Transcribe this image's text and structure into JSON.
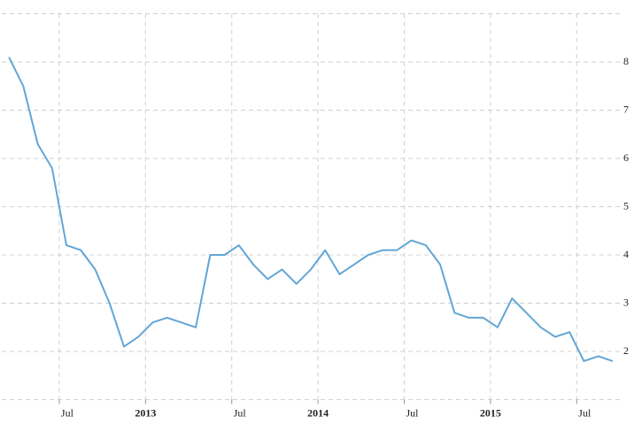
{
  "chart_data": {
    "type": "line",
    "x": [
      "2012-03",
      "2012-04",
      "2012-05",
      "2012-06",
      "2012-07",
      "2012-08",
      "2012-09",
      "2012-10",
      "2012-11",
      "2012-12",
      "2013-01",
      "2013-02",
      "2013-03",
      "2013-04",
      "2013-05",
      "2013-06",
      "2013-07",
      "2013-08",
      "2013-09",
      "2013-10",
      "2013-11",
      "2013-12",
      "2014-01",
      "2014-02",
      "2014-03",
      "2014-04",
      "2014-05",
      "2014-06",
      "2014-07",
      "2014-08",
      "2014-09",
      "2014-10",
      "2014-11",
      "2014-12",
      "2015-01",
      "2015-02",
      "2015-03",
      "2015-04",
      "2015-05",
      "2015-06",
      "2015-07",
      "2015-08",
      "2015-09"
    ],
    "series": [
      {
        "color": "#62a6d6",
        "values": [
          8.1,
          7.5,
          6.3,
          5.8,
          4.2,
          4.1,
          3.7,
          3.0,
          2.1,
          2.3,
          2.6,
          2.7,
          2.6,
          2.5,
          4.0,
          4.0,
          4.2,
          3.8,
          3.5,
          3.7,
          3.4,
          3.7,
          4.1,
          3.6,
          3.8,
          4.0,
          4.1,
          4.1,
          4.3,
          4.2,
          3.8,
          2.8,
          2.7,
          2.7,
          2.5,
          3.1,
          2.8,
          2.5,
          2.3,
          2.4,
          1.8,
          1.9,
          1.8
        ]
      }
    ],
    "xlim": [
      "2012-03",
      "2015-09"
    ],
    "xticks": [
      {
        "value": "2012-07",
        "label": "Jul"
      },
      {
        "value": "2013-01",
        "label": "2013"
      },
      {
        "value": "2013-07",
        "label": "Jul"
      },
      {
        "value": "2014-01",
        "label": "2014"
      },
      {
        "value": "2014-07",
        "label": "Jul"
      },
      {
        "value": "2015-01",
        "label": "2015"
      },
      {
        "value": "2015-07",
        "label": "Jul"
      }
    ],
    "ylim": [
      1,
      9
    ],
    "yticks": [
      2,
      3,
      4,
      5,
      6,
      7,
      8
    ],
    "grid": true
  }
}
